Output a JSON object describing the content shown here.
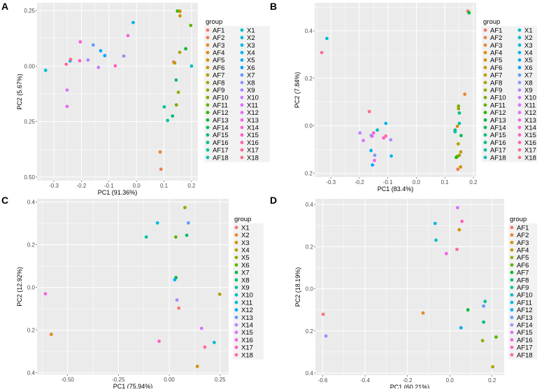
{
  "chart_data": [
    {
      "panel": "A",
      "type": "scatter",
      "xlabel": "PC1 (91.36%)",
      "ylabel": "PC2 (5.67%)",
      "xlim": [
        -0.361,
        0.223
      ],
      "ylim": [
        -0.516,
        0.285
      ],
      "xticks": [
        {
          "v": -0.3,
          "label": "-0.3"
        },
        {
          "v": -0.2,
          "label": "-0.2"
        },
        {
          "v": -0.1,
          "label": "-0.1"
        },
        {
          "v": 0.0,
          "label": "0.0"
        },
        {
          "v": 0.1,
          "label": "0.1"
        },
        {
          "v": 0.2,
          "label": "0.2"
        }
      ],
      "yticks": [
        {
          "v": 0.25,
          "label": "0.25"
        },
        {
          "v": 0.0,
          "label": "0.00"
        },
        {
          "v": -0.25,
          "label": "0.25"
        },
        {
          "v": -0.5,
          "label": "0.50"
        }
      ],
      "legend_title": "group",
      "groups": [
        "AF1",
        "AF2",
        "AF3",
        "AF4",
        "AF5",
        "AF6",
        "AF7",
        "AF8",
        "AF9",
        "AF10",
        "AF11",
        "AF12",
        "AF13",
        "AF14",
        "AF15",
        "AF16",
        "AF17",
        "AF18",
        "X1",
        "X2",
        "X3",
        "X4",
        "X5",
        "X6",
        "X7",
        "X8",
        "X9",
        "X10",
        "X11",
        "X12",
        "X13",
        "X14",
        "X15",
        "X16",
        "X17",
        "X18"
      ],
      "legend_columns": 2,
      "points": [
        {
          "g": "X2",
          "x": -0.33,
          "y": -0.019
        },
        {
          "g": "X17",
          "x": -0.255,
          "y": 0.008
        },
        {
          "g": "X3",
          "x": -0.241,
          "y": 0.023
        },
        {
          "g": "X18",
          "x": -0.239,
          "y": 0.03
        },
        {
          "g": "X14",
          "x": -0.204,
          "y": 0.109
        },
        {
          "g": "X15",
          "x": -0.206,
          "y": 0.024
        },
        {
          "g": "X9",
          "x": -0.176,
          "y": 0.027
        },
        {
          "g": "X7",
          "x": -0.157,
          "y": 0.095
        },
        {
          "g": "X5",
          "x": -0.13,
          "y": 0.069
        },
        {
          "g": "X6",
          "x": -0.115,
          "y": 0.047
        },
        {
          "g": "X10",
          "x": -0.138,
          "y": -0.006
        },
        {
          "g": "X16",
          "x": -0.077,
          "y": 0.001
        },
        {
          "g": "X8",
          "x": -0.046,
          "y": 0.045
        },
        {
          "g": "X13",
          "x": -0.031,
          "y": 0.137
        },
        {
          "g": "X4",
          "x": -0.012,
          "y": 0.196
        },
        {
          "g": "X11",
          "x": -0.252,
          "y": -0.108
        },
        {
          "g": "X12",
          "x": -0.252,
          "y": -0.182
        },
        {
          "g": "AF4",
          "x": 0.157,
          "y": 0.248
        },
        {
          "g": "AF12",
          "x": 0.149,
          "y": 0.248
        },
        {
          "g": "AF5",
          "x": 0.158,
          "y": 0.246
        },
        {
          "g": "AF6",
          "x": 0.158,
          "y": 0.226
        },
        {
          "g": "AF11",
          "x": 0.197,
          "y": 0.183
        },
        {
          "g": "AF13",
          "x": 0.179,
          "y": 0.078
        },
        {
          "g": "AF8",
          "x": 0.157,
          "y": 0.062
        },
        {
          "g": "AF1",
          "x": 0.135,
          "y": 0.018
        },
        {
          "g": "AF7",
          "x": 0.139,
          "y": 0.014
        },
        {
          "g": "X1",
          "x": 0.2,
          "y": 0.0
        },
        {
          "g": "AF14",
          "x": 0.144,
          "y": -0.063
        },
        {
          "g": "AF9",
          "x": 0.152,
          "y": -0.118
        },
        {
          "g": "AF10",
          "x": 0.145,
          "y": -0.175
        },
        {
          "g": "AF16",
          "x": 0.101,
          "y": -0.184
        },
        {
          "g": "AF15",
          "x": 0.131,
          "y": -0.225
        },
        {
          "g": "AF17",
          "x": 0.113,
          "y": -0.245
        },
        {
          "g": "AF3",
          "x": 0.086,
          "y": -0.387
        },
        {
          "g": "AF2",
          "x": 0.089,
          "y": -0.465
        }
      ]
    },
    {
      "panel": "B",
      "type": "scatter",
      "xlabel": "PC1 (83.4%)",
      "ylabel": "PC2 (7.84%)",
      "xlim": [
        -0.357,
        0.21
      ],
      "ylim": [
        -0.216,
        0.518
      ],
      "xticks": [
        {
          "v": -0.3,
          "label": "-0.3"
        },
        {
          "v": -0.2,
          "label": "-0.2"
        },
        {
          "v": -0.1,
          "label": "-0.1"
        },
        {
          "v": 0.0,
          "label": "0.0"
        },
        {
          "v": 0.1,
          "label": "0.1"
        },
        {
          "v": 0.2,
          "label": "0.2"
        }
      ],
      "yticks": [
        {
          "v": 0.4,
          "label": "0.4"
        },
        {
          "v": 0.2,
          "label": "0.2"
        },
        {
          "v": 0.0,
          "label": "0.0"
        },
        {
          "v": -0.2,
          "label": "0.2"
        }
      ],
      "legend_title": "group",
      "groups": [
        "AF1",
        "AF2",
        "AF3",
        "AF4",
        "AF5",
        "AF6",
        "AF7",
        "AF8",
        "AF9",
        "AF10",
        "AF11",
        "AF12",
        "AF13",
        "AF14",
        "AF15",
        "AF16",
        "AF17",
        "AF18",
        "X1",
        "X2",
        "X3",
        "X4",
        "X5",
        "X6",
        "X7",
        "X8",
        "X9",
        "X10",
        "X11",
        "X12",
        "X13",
        "X14",
        "X15",
        "X16",
        "X17",
        "X18"
      ],
      "legend_columns": 2,
      "points": [
        {
          "g": "AF1",
          "x": 0.181,
          "y": 0.483
        },
        {
          "g": "AF13",
          "x": 0.185,
          "y": 0.476
        },
        {
          "g": "X2",
          "x": -0.314,
          "y": 0.368
        },
        {
          "g": "X17",
          "x": -0.332,
          "y": 0.308
        },
        {
          "g": "AF3",
          "x": 0.17,
          "y": 0.133
        },
        {
          "g": "AF10",
          "x": 0.148,
          "y": 0.083
        },
        {
          "g": "AF9",
          "x": 0.148,
          "y": 0.072
        },
        {
          "g": "AF16",
          "x": 0.151,
          "y": 0.054
        },
        {
          "g": "X18",
          "x": -0.165,
          "y": 0.06
        },
        {
          "g": "X3",
          "x": -0.107,
          "y": 0.01
        },
        {
          "g": "AF17",
          "x": 0.151,
          "y": 0.01
        },
        {
          "g": "AF4",
          "x": 0.144,
          "y": -0.002
        },
        {
          "g": "AF15",
          "x": 0.136,
          "y": -0.018
        },
        {
          "g": "AF18",
          "x": 0.136,
          "y": -0.025
        },
        {
          "g": "AF14",
          "x": 0.157,
          "y": -0.041
        },
        {
          "g": "X1",
          "x": -0.137,
          "y": -0.018
        },
        {
          "g": "X10",
          "x": -0.198,
          "y": -0.03
        },
        {
          "g": "X14",
          "x": -0.15,
          "y": -0.03
        },
        {
          "g": "X7",
          "x": -0.158,
          "y": -0.041
        },
        {
          "g": "X12",
          "x": -0.155,
          "y": -0.044
        },
        {
          "g": "X11",
          "x": -0.186,
          "y": -0.062
        },
        {
          "g": "X16",
          "x": -0.107,
          "y": -0.043
        },
        {
          "g": "X15",
          "x": -0.115,
          "y": -0.051
        },
        {
          "g": "X9",
          "x": -0.09,
          "y": -0.059
        },
        {
          "g": "AF7",
          "x": 0.147,
          "y": -0.076
        },
        {
          "g": "AF6",
          "x": 0.156,
          "y": -0.11
        },
        {
          "g": "AF8",
          "x": 0.151,
          "y": -0.124
        },
        {
          "g": "AF11",
          "x": 0.144,
          "y": -0.129
        },
        {
          "g": "AF12",
          "x": 0.14,
          "y": -0.133
        },
        {
          "g": "X5",
          "x": -0.159,
          "y": -0.104
        },
        {
          "g": "X8",
          "x": -0.146,
          "y": -0.124
        },
        {
          "g": "X4",
          "x": -0.088,
          "y": -0.127
        },
        {
          "g": "X13",
          "x": -0.147,
          "y": -0.146
        },
        {
          "g": "X6",
          "x": -0.154,
          "y": -0.165
        },
        {
          "g": "AF5",
          "x": 0.155,
          "y": -0.173
        },
        {
          "g": "AF2",
          "x": 0.146,
          "y": -0.183
        }
      ]
    },
    {
      "panel": "C",
      "type": "scatter",
      "xlabel": "PC1 (75.94%)",
      "ylabel": "PC2 (12.92%)",
      "xlim": [
        -0.65,
        0.292
      ],
      "ylim": [
        -0.408,
        0.415
      ],
      "xticks": [
        {
          "v": -0.5,
          "label": "-0.50"
        },
        {
          "v": -0.25,
          "label": "-0.25"
        },
        {
          "v": 0.0,
          "label": "0.00"
        },
        {
          "v": 0.25,
          "label": "0.25"
        }
      ],
      "yticks": [
        {
          "v": 0.4,
          "label": "0.4"
        },
        {
          "v": 0.2,
          "label": "0.2"
        },
        {
          "v": 0.0,
          "label": "0.0"
        },
        {
          "v": -0.2,
          "label": "0.2"
        },
        {
          "v": -0.4,
          "label": "0.4"
        }
      ],
      "legend_title": "group",
      "groups": [
        "X1",
        "X2",
        "X3",
        "X4",
        "X5",
        "X6",
        "X7",
        "X8",
        "X9",
        "X10",
        "X11",
        "X12",
        "X13",
        "X14",
        "X15",
        "X16",
        "X17",
        "X18"
      ],
      "legend_columns": 1,
      "points": [
        {
          "g": "X5",
          "x": 0.077,
          "y": 0.374
        },
        {
          "g": "X11",
          "x": -0.058,
          "y": 0.302
        },
        {
          "g": "X13",
          "x": 0.094,
          "y": 0.302
        },
        {
          "g": "X9",
          "x": -0.113,
          "y": 0.236
        },
        {
          "g": "X6",
          "x": 0.032,
          "y": 0.236
        },
        {
          "g": "X8",
          "x": 0.086,
          "y": 0.244
        },
        {
          "g": "X7",
          "x": 0.033,
          "y": 0.046
        },
        {
          "g": "X12",
          "x": 0.027,
          "y": 0.036
        },
        {
          "g": "X16",
          "x": -0.609,
          "y": -0.03
        },
        {
          "g": "X4",
          "x": 0.248,
          "y": -0.032
        },
        {
          "g": "X14",
          "x": 0.038,
          "y": -0.059
        },
        {
          "g": "X1",
          "x": 0.047,
          "y": -0.097
        },
        {
          "g": "X15",
          "x": 0.159,
          "y": -0.192
        },
        {
          "g": "X2",
          "x": -0.58,
          "y": -0.22
        },
        {
          "g": "X17",
          "x": -0.05,
          "y": -0.252
        },
        {
          "g": "X10",
          "x": 0.221,
          "y": -0.258
        },
        {
          "g": "X18",
          "x": 0.175,
          "y": -0.28
        },
        {
          "g": "X3",
          "x": 0.138,
          "y": -0.37
        }
      ]
    },
    {
      "panel": "D",
      "type": "scatter",
      "xlabel": "PC1 (60.21%)",
      "ylabel": "PC2 (18.19%)",
      "xlim": [
        -0.635,
        0.257
      ],
      "ylim": [
        -0.41,
        0.427
      ],
      "xticks": [
        {
          "v": -0.6,
          "label": "-0.6"
        },
        {
          "v": -0.4,
          "label": "-0.4"
        },
        {
          "v": -0.2,
          "label": "-0.2"
        },
        {
          "v": 0.0,
          "label": "0.0"
        },
        {
          "v": 0.2,
          "label": "0.2"
        }
      ],
      "yticks": [
        {
          "v": 0.4,
          "label": "0.4"
        },
        {
          "v": 0.2,
          "label": "0.2"
        },
        {
          "v": 0.0,
          "label": "0.0"
        },
        {
          "v": -0.2,
          "label": "0.2"
        },
        {
          "v": -0.4,
          "label": "0.4"
        }
      ],
      "legend_title": "group",
      "groups": [
        "AF1",
        "AF2",
        "AF3",
        "AF4",
        "AF5",
        "AF6",
        "AF7",
        "AF8",
        "AF9",
        "AF10",
        "AF11",
        "AF12",
        "AF13",
        "AF14",
        "AF15",
        "AF16",
        "AF17",
        "AF18"
      ],
      "legend_columns": 1,
      "points": [
        {
          "g": "AF15",
          "x": 0.037,
          "y": 0.385
        },
        {
          "g": "AF17",
          "x": 0.058,
          "y": 0.32
        },
        {
          "g": "AF11",
          "x": -0.069,
          "y": 0.31
        },
        {
          "g": "AF3",
          "x": 0.045,
          "y": 0.28
        },
        {
          "g": "AF10",
          "x": -0.065,
          "y": 0.231
        },
        {
          "g": "AF18",
          "x": 0.034,
          "y": 0.187
        },
        {
          "g": "AF16",
          "x": -0.016,
          "y": 0.167
        },
        {
          "g": "AF9",
          "x": 0.167,
          "y": -0.06
        },
        {
          "g": "AF13",
          "x": 0.16,
          "y": -0.082
        },
        {
          "g": "AF7",
          "x": 0.086,
          "y": -0.1
        },
        {
          "g": "AF1",
          "x": -0.598,
          "y": -0.121
        },
        {
          "g": "AF2",
          "x": -0.126,
          "y": -0.115
        },
        {
          "g": "AF8",
          "x": 0.16,
          "y": -0.158
        },
        {
          "g": "AF12",
          "x": 0.053,
          "y": -0.185
        },
        {
          "g": "AF14",
          "x": -0.585,
          "y": -0.224
        },
        {
          "g": "AF6",
          "x": 0.219,
          "y": -0.229
        },
        {
          "g": "AF5",
          "x": 0.155,
          "y": -0.246
        },
        {
          "g": "AF4",
          "x": 0.203,
          "y": -0.37
        }
      ]
    }
  ],
  "colors": {
    "panel_bg": "#ebebeb",
    "grid": "#ffffff",
    "tick_text": "#4d4d4d"
  }
}
